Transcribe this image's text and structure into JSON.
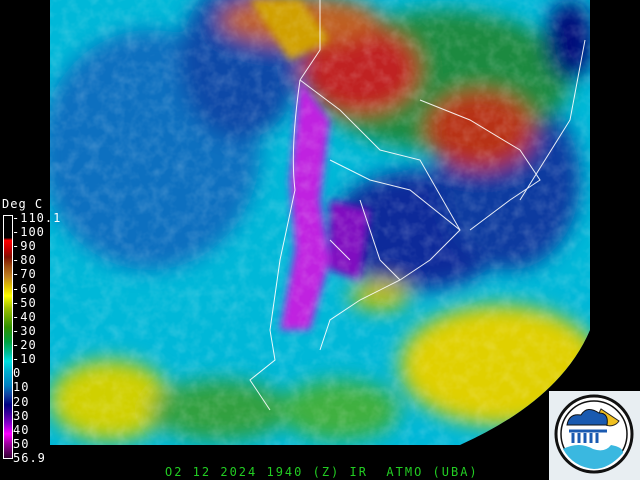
{
  "legend": {
    "unit": "Deg  C",
    "labels": [
      "-110.1",
      "-100",
      "-90",
      "-80",
      "-70",
      "-60",
      "-50",
      "-40",
      "-30",
      "-20",
      "-10",
      "0",
      "10",
      "20",
      "30",
      "40",
      "50",
      "56.9"
    ]
  },
  "caption": "O2 12 2024 1940 (Z) IR  ATMO (UBA)",
  "colors": {
    "caption": "#22cc22",
    "legend_text": "#ffffff",
    "background": "#000000"
  },
  "logo": {
    "name": "ATMO UBA weather logo",
    "icon": "cloud-rain-sun-wave-icon"
  }
}
